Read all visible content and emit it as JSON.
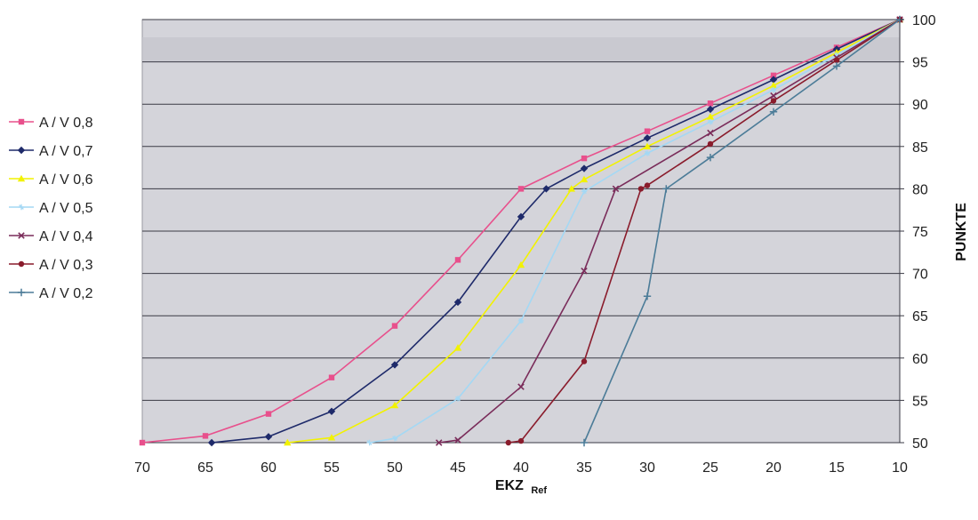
{
  "chart_data": {
    "type": "line",
    "title": "",
    "xlabel": "EKZ",
    "xlabel_subscript": "Ref",
    "ylabel": "PUNKTE",
    "xlim": [
      70,
      10
    ],
    "ylim": [
      50,
      100
    ],
    "x_reversed": true,
    "y_axis_side": "right",
    "x_ticks": [
      70,
      65,
      60,
      55,
      50,
      45,
      40,
      35,
      30,
      25,
      20,
      15,
      10
    ],
    "y_ticks": [
      50,
      55,
      60,
      65,
      70,
      75,
      80,
      85,
      90,
      95,
      100
    ],
    "grid": "horizontal",
    "legend_position": "left",
    "plot_background": "#d4d4da",
    "series": [
      {
        "name": "A / V 0,8",
        "color": "#e8508c",
        "marker": "square",
        "x": [
          70,
          65,
          60,
          55,
          50,
          45,
          40,
          35,
          30,
          25,
          20,
          15,
          10
        ],
        "y": [
          50,
          50.8,
          53.4,
          57.7,
          63.8,
          71.6,
          80,
          83.6,
          86.8,
          90.1,
          93.4,
          96.7,
          100
        ]
      },
      {
        "name": "A / V 0,7",
        "color": "#1e2a6a",
        "marker": "diamond",
        "x": [
          64.5,
          60,
          55,
          50,
          45,
          40,
          38,
          35,
          30,
          25,
          20,
          15,
          10
        ],
        "y": [
          50,
          50.7,
          53.7,
          59.2,
          66.6,
          76.7,
          80,
          82.4,
          86,
          89.4,
          92.9,
          96.5,
          100
        ]
      },
      {
        "name": "A / V 0,6",
        "color": "#f2f200",
        "marker": "triangle",
        "x": [
          58.5,
          55,
          50,
          45,
          40,
          36,
          35,
          30,
          25,
          20,
          15,
          10
        ],
        "y": [
          50,
          50.6,
          54.4,
          61.2,
          71,
          80,
          81.1,
          85,
          88.5,
          92.2,
          96.1,
          100
        ]
      },
      {
        "name": "A / V 0,5",
        "color": "#a4d8f4",
        "marker": "cross",
        "x": [
          52,
          50,
          45,
          40,
          35,
          30,
          25,
          20,
          15,
          10
        ],
        "y": [
          50,
          50.5,
          55.2,
          64.4,
          79.7,
          84.2,
          87.9,
          91.7,
          95.8,
          100
        ]
      },
      {
        "name": "A / V 0,4",
        "color": "#7a2c5a",
        "marker": "x",
        "x": [
          46.5,
          45,
          40,
          35,
          32.5,
          25,
          20,
          15,
          10
        ],
        "y": [
          50,
          50.3,
          56.6,
          70.3,
          80,
          86.6,
          91,
          95.5,
          100
        ]
      },
      {
        "name": "A / V 0,3",
        "color": "#8a1c2c",
        "marker": "circle",
        "x": [
          41,
          40,
          35,
          30.5,
          30,
          25,
          20,
          15,
          10
        ],
        "y": [
          50,
          50.2,
          59.6,
          80,
          80.4,
          85.3,
          90.4,
          95.2,
          100
        ]
      },
      {
        "name": "A / V 0,2",
        "color": "#4c7c98",
        "marker": "plus",
        "x": [
          35,
          30,
          28.5,
          25,
          20,
          15,
          10
        ],
        "y": [
          50,
          67.3,
          80,
          83.7,
          89.1,
          94.5,
          100
        ]
      }
    ]
  }
}
